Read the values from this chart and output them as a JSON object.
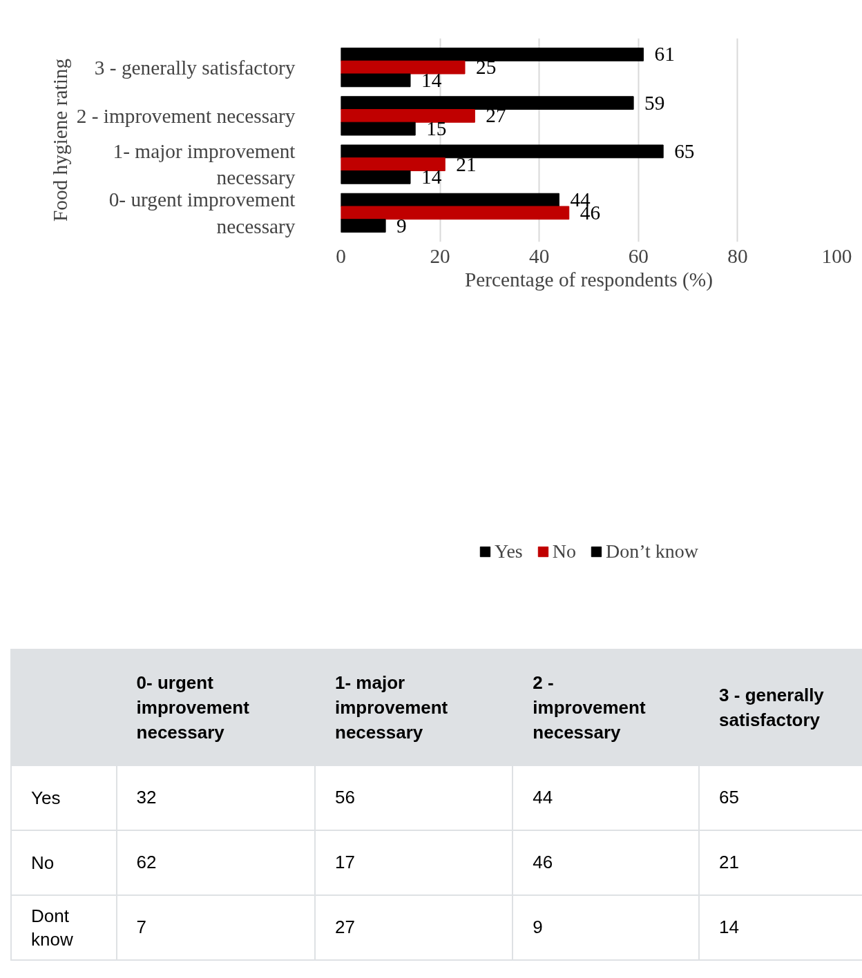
{
  "chart_data": [
    {
      "type": "bar",
      "orientation": "horizontal",
      "categories": [
        "3 - generally satisfactory",
        "2 - improvement necessary",
        "1- major improvement necessary",
        "0- urgent improvement necessary"
      ],
      "series": [
        {
          "name": "Yes",
          "color": "#000000",
          "values": [
            61,
            59,
            65,
            44
          ]
        },
        {
          "name": "No",
          "color": "#c00000",
          "values": [
            25,
            27,
            21,
            46
          ]
        },
        {
          "name": "Don’t know",
          "color": "#000000",
          "values": [
            14,
            15,
            14,
            9
          ]
        }
      ],
      "xlim": [
        0,
        100
      ],
      "xticks": [
        0,
        20,
        40,
        60,
        80,
        100
      ],
      "xlabel": "Percentage of respondents (%)",
      "ylabel": "Food hygiene rating",
      "grid": "x",
      "legend": "bottom",
      "data_labels": true
    },
    {
      "type": "other",
      "categories": [
        "0- urgent improvement necessary",
        "1- major improvement necessary",
        "2 - improvement necessary",
        "3 - generally satisfactory"
      ],
      "series": [
        {
          "name": "Yes",
          "values": [
            32,
            56,
            44,
            65
          ]
        },
        {
          "name": "No",
          "values": [
            62,
            17,
            46,
            21
          ]
        },
        {
          "name": "Dont know",
          "values": [
            7,
            27,
            9,
            14
          ]
        }
      ],
      "data_labels": true
    }
  ]
}
